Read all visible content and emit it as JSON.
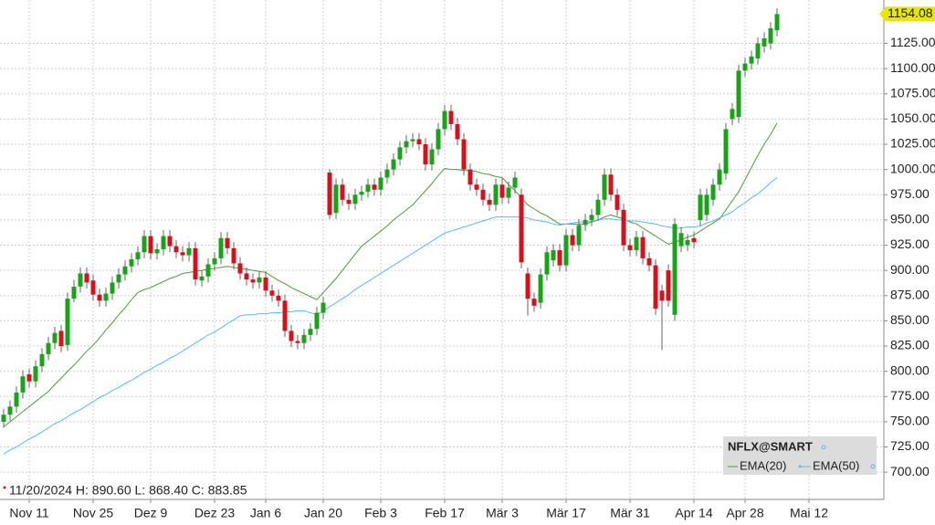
{
  "chart_data": {
    "type": "candlestick",
    "name": "NFLX@SMART",
    "annotation": "11/20/2024 H: 890.60 L: 868.40 C: 883.85",
    "up_color": "#1aa31a",
    "down_color": "#d4121e",
    "grid": true,
    "legend": "lower right",
    "last_price_color": "#e6e600",
    "ylim": [
      673,
      1168
    ],
    "yticks": [
      {
        "value": 700,
        "label": "700.00"
      },
      {
        "value": 725,
        "label": "725.00"
      },
      {
        "value": 750,
        "label": "750.00"
      },
      {
        "value": 775,
        "label": "775.00"
      },
      {
        "value": 800,
        "label": "800.00"
      },
      {
        "value": 825,
        "label": "825.00"
      },
      {
        "value": 850,
        "label": "850.00"
      },
      {
        "value": 875,
        "label": "875.00"
      },
      {
        "value": 900,
        "label": "900.00"
      },
      {
        "value": 925,
        "label": "925.00"
      },
      {
        "value": 950,
        "label": "950.00"
      },
      {
        "value": 975,
        "label": "975.00"
      },
      {
        "value": 1000,
        "label": "1000.00"
      },
      {
        "value": 1025,
        "label": "1025.00"
      },
      {
        "value": 1050,
        "label": "1050.00"
      },
      {
        "value": 1075,
        "label": "1075.00"
      },
      {
        "value": 1100,
        "label": "1100.00"
      },
      {
        "value": 1125,
        "label": "1125.00"
      }
    ],
    "categories": [
      null,
      null,
      null,
      null,
      "Nov 11",
      null,
      null,
      null,
      null,
      null,
      null,
      null,
      null,
      null,
      "Nov 25",
      null,
      null,
      null,
      null,
      null,
      null,
      null,
      null,
      "Dez 9",
      null,
      null,
      null,
      null,
      null,
      null,
      null,
      null,
      null,
      "Dez 23",
      null,
      null,
      null,
      null,
      null,
      null,
      null,
      "Jan 6",
      null,
      null,
      null,
      null,
      null,
      null,
      null,
      null,
      "Jan 20",
      null,
      null,
      null,
      null,
      null,
      null,
      null,
      null,
      "Feb 3",
      null,
      null,
      null,
      null,
      null,
      null,
      null,
      null,
      null,
      "Feb 17",
      null,
      null,
      null,
      null,
      null,
      null,
      null,
      null,
      "Mär 3",
      null,
      null,
      null,
      null,
      null,
      null,
      null,
      null,
      null,
      "Mär 17",
      null,
      null,
      null,
      null,
      null,
      null,
      null,
      null,
      null,
      "Mär 31",
      null,
      null,
      null,
      null,
      null,
      null,
      null,
      null,
      null,
      "Apr 14",
      null,
      null,
      null,
      null,
      null,
      null,
      null,
      "Apr 28",
      null,
      null,
      null,
      null,
      null,
      null,
      null,
      null,
      null,
      "Mai 12"
    ],
    "open": [
      750,
      757,
      765,
      779,
      797,
      790,
      805,
      817,
      828,
      840,
      826,
      872,
      884,
      897,
      890,
      876,
      870,
      877,
      888,
      896,
      904,
      911,
      918,
      934,
      917,
      921,
      934,
      924,
      918,
      915,
      922,
      890,
      894,
      906,
      912,
      932,
      922,
      907,
      897,
      891,
      888,
      893,
      880,
      875,
      870,
      840,
      830,
      828,
      836,
      842,
      858,
      997,
      957,
      985,
      970,
      966,
      975,
      978,
      985,
      980,
      992,
      1000,
      1010,
      1022,
      1028,
      1030,
      1025,
      1005,
      1020,
      1040,
      1058,
      1045,
      1030,
      1000,
      985,
      980,
      970,
      965,
      985,
      972,
      982,
      975,
      897,
      872,
      868,
      896,
      910,
      920,
      905,
      935,
      925,
      945,
      950,
      955,
      970,
      995,
      975,
      960,
      925,
      920,
      933,
      912,
      905,
      880,
      900,
      856,
      924,
      925,
      932,
      950,
      955,
      970,
      985,
      996,
      1050,
      1052,
      1098,
      1105,
      1110,
      1122,
      1125,
      1138,
      null,
      null,
      null,
      null,
      null
    ],
    "high": [
      763,
      771,
      785,
      801,
      803,
      811,
      823,
      834,
      844,
      846,
      878,
      890.6,
      903,
      903,
      896,
      882,
      883,
      894,
      902,
      910,
      917,
      924,
      940,
      940,
      927,
      940,
      940,
      930,
      924,
      928,
      928,
      900,
      912,
      918,
      938,
      938,
      928,
      913,
      903,
      897,
      899,
      899,
      886,
      881,
      876,
      846,
      836,
      842,
      848,
      864,
      874,
      1000,
      991,
      991,
      976,
      981,
      984,
      991,
      991,
      998,
      1006,
      1016,
      1028,
      1034,
      1036,
      1036,
      1031,
      1026,
      1046,
      1064,
      1064,
      1051,
      1036,
      1006,
      991,
      986,
      976,
      991,
      991,
      988,
      998,
      981,
      903,
      878,
      902,
      924,
      926,
      926,
      941,
      941,
      951,
      956,
      961,
      976,
      1001,
      1001,
      981,
      966,
      931,
      939,
      939,
      918,
      911,
      886,
      906,
      952,
      943,
      936,
      938,
      981,
      981,
      991,
      1006,
      1046,
      1066,
      1104,
      1111,
      1118,
      1131,
      1136,
      1146,
      1160,
      null,
      null,
      null,
      null,
      null
    ],
    "low": [
      744,
      751,
      759,
      773,
      784,
      784,
      799,
      811,
      822,
      819,
      820,
      868.4,
      878,
      882,
      870,
      864,
      864,
      871,
      882,
      890,
      898,
      905,
      912,
      911,
      911,
      915,
      918,
      912,
      909,
      909,
      885,
      884,
      888,
      900,
      906,
      916,
      901,
      891,
      885,
      882,
      882,
      874,
      869,
      864,
      834,
      824,
      822,
      822,
      830,
      836,
      852,
      951,
      951,
      964,
      960,
      960,
      969,
      972,
      974,
      974,
      986,
      994,
      1004,
      1016,
      1022,
      1019,
      999,
      999,
      1014,
      1034,
      1039,
      1024,
      994,
      979,
      974,
      964,
      959,
      959,
      966,
      966,
      976,
      902,
      855,
      859,
      862,
      890,
      904,
      899,
      899,
      919,
      919,
      939,
      944,
      949,
      964,
      969,
      954,
      919,
      914,
      914,
      906,
      899,
      856,
      821,
      864,
      850,
      918,
      919,
      922,
      944,
      949,
      964,
      979,
      990,
      1044,
      1046,
      1092,
      1099,
      1104,
      1116,
      1119,
      1132,
      null,
      null,
      null,
      null,
      null
    ],
    "close": [
      757,
      765,
      779,
      795,
      790,
      805,
      817,
      828,
      838,
      825,
      872,
      883.85,
      897,
      888,
      876,
      870,
      877,
      888,
      896,
      904,
      911,
      918,
      934,
      917,
      921,
      934,
      924,
      918,
      915,
      922,
      891,
      894,
      906,
      912,
      932,
      922,
      907,
      897,
      891,
      888,
      893,
      880,
      875,
      870,
      840,
      830,
      828,
      836,
      842,
      858,
      868,
      955,
      985,
      970,
      966,
      975,
      978,
      985,
      980,
      992,
      1000,
      1010,
      1022,
      1028,
      1030,
      1025,
      1005,
      1020,
      1040,
      1058,
      1045,
      1030,
      1000,
      985,
      980,
      970,
      965,
      985,
      972,
      982,
      992,
      908,
      872,
      865,
      896,
      918,
      920,
      905,
      935,
      925,
      945,
      950,
      955,
      970,
      995,
      975,
      960,
      925,
      920,
      933,
      912,
      905,
      862,
      870,
      870,
      946,
      937,
      930,
      928,
      975,
      975,
      985,
      1000,
      1040,
      1060,
      1098,
      1105,
      1112,
      1125,
      1130,
      1140,
      1154.08,
      null,
      null,
      null,
      null,
      null
    ],
    "series": [
      {
        "name": "EMA(20)",
        "color": "#4e9a3c",
        "values": [
          745,
          750,
          755,
          760,
          765,
          770,
          775,
          780,
          787,
          793,
          800,
          806,
          813,
          820,
          826,
          833,
          841,
          848,
          856,
          863,
          871,
          878,
          881,
          883,
          886,
          889,
          892,
          894,
          897,
          898,
          899,
          900,
          901,
          902,
          903,
          904,
          903,
          902,
          901,
          900,
          899,
          898,
          894,
          890,
          887,
          883,
          880,
          877,
          874,
          871,
          878,
          885,
          892,
          900,
          908,
          916,
          924,
          929,
          934,
          939,
          944,
          950,
          955,
          960,
          965,
          972,
          979,
          986,
          994,
          1001,
          1000,
          1000,
          999,
          999,
          998,
          996,
          995,
          993,
          992,
          985,
          979,
          972,
          965,
          961,
          957,
          954,
          950,
          946,
          946,
          946,
          946,
          946,
          948,
          950,
          953,
          955,
          953,
          951,
          948,
          946,
          942,
          938,
          934,
          930,
          926,
          928,
          930,
          933,
          935,
          939,
          943,
          947,
          951,
          960,
          969,
          978,
          990,
          1002,
          1014,
          1025,
          1035,
          1046,
          null,
          null,
          null,
          null,
          null
        ]
      },
      {
        "name": "EMA(50)",
        "color": "#5ab8f0",
        "values": [
          718,
          722,
          725,
          729,
          733,
          736,
          740,
          744,
          748,
          751,
          755,
          759,
          762,
          766,
          770,
          774,
          777,
          781,
          784,
          788,
          791,
          795,
          799,
          802,
          806,
          809,
          813,
          816,
          820,
          824,
          828,
          832,
          836,
          839,
          843,
          847,
          851,
          855,
          856,
          856,
          857,
          857,
          858,
          858,
          859,
          859,
          860,
          860,
          858,
          856,
          860,
          864,
          868,
          872,
          876,
          881,
          885,
          889,
          893,
          897,
          901,
          905,
          909,
          913,
          917,
          921,
          925,
          929,
          933,
          937,
          939,
          941,
          943,
          945,
          947,
          949,
          951,
          953,
          953,
          953,
          953,
          953,
          952,
          950,
          949,
          948,
          946,
          945,
          946,
          947,
          948,
          948,
          949,
          950,
          951,
          951,
          950,
          950,
          949,
          949,
          948,
          947,
          946,
          944,
          943,
          942,
          942,
          943,
          943,
          944,
          947,
          949,
          952,
          955,
          958,
          963,
          967,
          972,
          976,
          981,
          987,
          992,
          null,
          null,
          null,
          null,
          null
        ]
      }
    ]
  }
}
